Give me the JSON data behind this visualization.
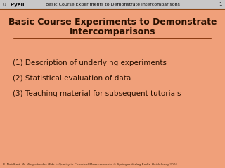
{
  "bg_color": "#F0A07A",
  "header_bg": "#C8C8C8",
  "header_text_color": "#000000",
  "header_author": "U. Pyeil",
  "header_title": "Basic Course Experiments to Demonstrate Intercomparisons",
  "header_page": "1",
  "title_line1": "Basic Course Experiments to Demonstrate",
  "title_line2": "Intercomparisons",
  "title_color": "#2A1000",
  "line_color": "#7A2A00",
  "items": [
    "(1) Description of underlying experiments",
    "(2) Statistical evaluation of data",
    "(3) Teaching material for subsequent tutorials"
  ],
  "item_color": "#2A1000",
  "footer_text": "B. Neidhart, W. Wegscheider (Eds.): Quality in Chemical Measurements © Springer-Verlag Berlin Heidelberg 2006",
  "footer_color": "#4A2A10"
}
